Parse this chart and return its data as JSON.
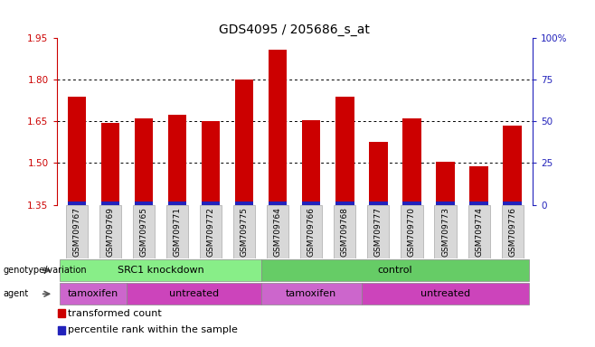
{
  "title": "GDS4095 / 205686_s_at",
  "samples": [
    "GSM709767",
    "GSM709769",
    "GSM709765",
    "GSM709771",
    "GSM709772",
    "GSM709775",
    "GSM709764",
    "GSM709766",
    "GSM709768",
    "GSM709777",
    "GSM709770",
    "GSM709773",
    "GSM709774",
    "GSM709776"
  ],
  "transformed_count": [
    1.74,
    1.645,
    1.66,
    1.675,
    1.65,
    1.8,
    1.91,
    1.655,
    1.74,
    1.575,
    1.66,
    1.505,
    1.49,
    1.635
  ],
  "percentile_rank_pct": [
    7,
    8,
    8,
    7,
    6,
    9,
    7,
    8,
    7,
    6,
    7,
    8,
    7,
    6
  ],
  "ymin": 1.35,
  "ymax": 1.95,
  "yticks_left": [
    1.35,
    1.5,
    1.65,
    1.8,
    1.95
  ],
  "right_ytick_pct": [
    0,
    25,
    50,
    75,
    100
  ],
  "right_yticklabels": [
    "0",
    "25",
    "50",
    "75",
    "100%"
  ],
  "bar_color": "#cc0000",
  "percentile_color": "#2222bb",
  "background_color": "#ffffff",
  "genotype_groups": [
    {
      "label": "SRC1 knockdown",
      "start": 0,
      "end": 6,
      "color": "#88ee88"
    },
    {
      "label": "control",
      "start": 6,
      "end": 14,
      "color": "#66cc66"
    }
  ],
  "agent_groups": [
    {
      "label": "tamoxifen",
      "start": 0,
      "end": 2,
      "color": "#cc66cc"
    },
    {
      "label": "untreated",
      "start": 2,
      "end": 6,
      "color": "#cc44bb"
    },
    {
      "label": "tamoxifen",
      "start": 6,
      "end": 9,
      "color": "#cc66cc"
    },
    {
      "label": "untreated",
      "start": 9,
      "end": 14,
      "color": "#cc44bb"
    }
  ],
  "legend_items": [
    {
      "label": "transformed count",
      "color": "#cc0000"
    },
    {
      "label": "percentile rank within the sample",
      "color": "#2222bb"
    }
  ],
  "left_axis_color": "#cc0000",
  "right_axis_color": "#2222bb",
  "bar_width": 0.55,
  "tick_fontsize": 7.5,
  "title_fontsize": 10,
  "sample_fontsize": 6.5,
  "annot_fontsize": 8,
  "legend_fontsize": 8
}
